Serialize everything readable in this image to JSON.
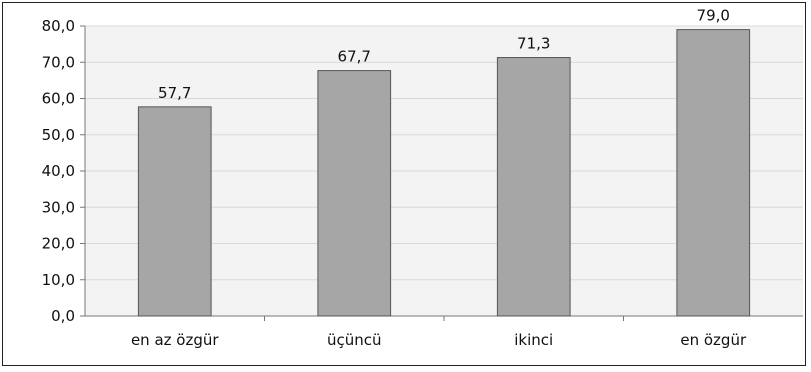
{
  "chart_data": {
    "type": "bar",
    "categories": [
      "en az özgür",
      "üçüncü",
      "ikinci",
      "en özgür"
    ],
    "values": [
      57.7,
      67.7,
      71.3,
      79.0
    ],
    "data_labels": [
      "57,7",
      "67,7",
      "71,3",
      "79,0"
    ],
    "ylim": [
      0,
      80
    ],
    "yticks": [
      0,
      10,
      20,
      30,
      40,
      50,
      60,
      70,
      80
    ],
    "ytick_labels": [
      "0,0",
      "10,0",
      "20,0",
      "30,0",
      "40,0",
      "50,0",
      "60,0",
      "70,0",
      "80,0"
    ],
    "grid": true,
    "legend": "none",
    "colors": {
      "bar": "#a6a6a6",
      "bar_border": "#555555",
      "plot_bg": "#f3f3f3",
      "grid": "#d9d9d9",
      "axis": "#777777"
    }
  }
}
